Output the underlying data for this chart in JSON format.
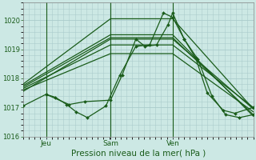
{
  "xlabel": "Pression niveau de la mer( hPa )",
  "background_color": "#cce8e4",
  "grid_color": "#aacccc",
  "line_color": "#1a5c1a",
  "marker_color": "#1a5c1a",
  "ylim": [
    1016,
    1020.6
  ],
  "yticks": [
    1016,
    1017,
    1018,
    1019,
    1020
  ],
  "x_day_labels": [
    "Jeu",
    "Sam",
    "Ven"
  ],
  "x_vline_positions": [
    0.1,
    0.38,
    0.65
  ],
  "lines": [
    {
      "x": [
        0.0,
        0.1,
        0.14,
        0.19,
        0.23,
        0.28,
        0.36,
        0.42,
        0.49,
        0.55,
        0.61,
        0.65,
        0.7,
        0.75,
        0.8,
        0.87,
        0.92,
        1.0
      ],
      "y": [
        1017.05,
        1017.45,
        1017.35,
        1017.1,
        1016.85,
        1016.65,
        1017.05,
        1018.1,
        1019.1,
        1019.15,
        1020.25,
        1020.1,
        1019.35,
        1018.7,
        1017.5,
        1016.9,
        1016.8,
        1017.0
      ],
      "markers": true
    },
    {
      "x": [
        0.0,
        0.38,
        0.65,
        1.0
      ],
      "y": [
        1017.55,
        1019.35,
        1019.35,
        1016.95
      ],
      "markers": false
    },
    {
      "x": [
        0.0,
        0.38,
        0.65,
        1.0
      ],
      "y": [
        1017.6,
        1018.85,
        1018.85,
        1016.85
      ],
      "markers": false
    },
    {
      "x": [
        0.0,
        0.38,
        0.65,
        1.0
      ],
      "y": [
        1017.65,
        1019.15,
        1019.15,
        1017.0
      ],
      "markers": false
    },
    {
      "x": [
        0.0,
        0.38,
        0.65,
        1.0
      ],
      "y": [
        1017.7,
        1019.4,
        1019.4,
        1016.75
      ],
      "markers": false
    },
    {
      "x": [
        0.0,
        0.38,
        0.65,
        1.0
      ],
      "y": [
        1017.75,
        1019.5,
        1019.5,
        1016.7
      ],
      "markers": false
    },
    {
      "x": [
        0.0,
        0.38,
        0.65,
        1.0
      ],
      "y": [
        1017.8,
        1020.05,
        1020.05,
        1016.95
      ],
      "markers": false
    },
    {
      "x": [
        0.1,
        0.2,
        0.27,
        0.38,
        0.43,
        0.49,
        0.53,
        0.58,
        0.63,
        0.65,
        0.7,
        0.76,
        0.82,
        0.88,
        0.94,
        1.0
      ],
      "y": [
        1017.45,
        1017.1,
        1017.2,
        1017.25,
        1018.1,
        1019.35,
        1019.1,
        1019.15,
        1019.85,
        1020.25,
        1019.35,
        1018.65,
        1017.4,
        1016.75,
        1016.65,
        1016.75
      ],
      "markers": true
    }
  ]
}
